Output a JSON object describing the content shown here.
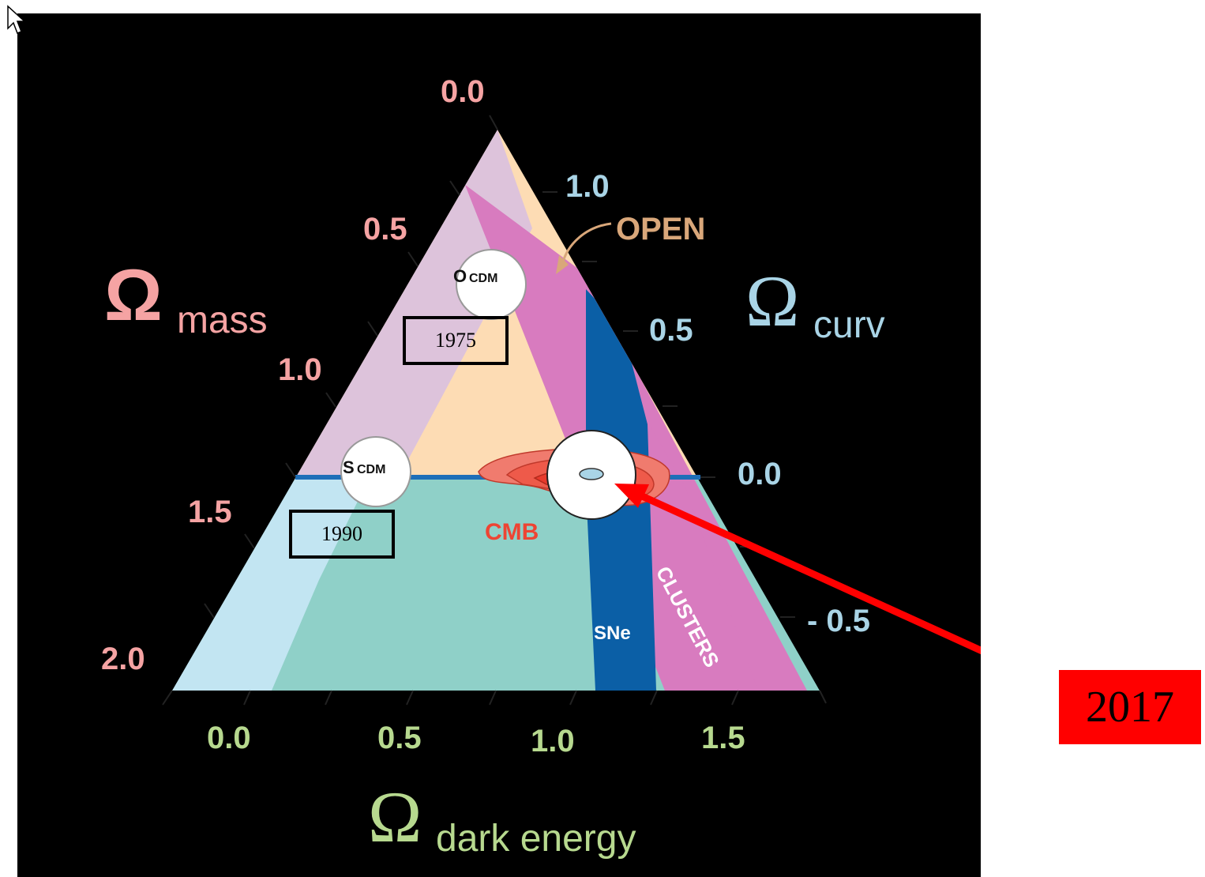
{
  "axes": {
    "mass": {
      "symbol": "Ω",
      "subscript": "mass",
      "ticks": [
        "0.0",
        "0.5",
        "1.0",
        "1.5",
        "2.0"
      ]
    },
    "curv": {
      "symbol": "Ω",
      "subscript": "curv",
      "ticks": [
        "1.0",
        "0.5",
        "0.0",
        "- 0.5"
      ]
    },
    "dark_energy": {
      "symbol": "Ω",
      "subscript": "dark energy",
      "ticks": [
        "0.0",
        "0.5",
        "1.0",
        "1.5"
      ]
    }
  },
  "regions": {
    "open": "OPEN",
    "cmb": "CMB",
    "sne": "SNe",
    "clusters": "CLUSTERS"
  },
  "models": {
    "ocdm": {
      "big": "O",
      "small": "CDM"
    },
    "scdm": {
      "big": "S",
      "small": "CDM"
    }
  },
  "years": {
    "y1975": "1975",
    "y1990": "1990",
    "y2017": "2017"
  },
  "colors": {
    "mass_label": "#f5a3a3",
    "curv_label": "#a9d4e6",
    "dark_energy_label": "#b7d98f",
    "open_label": "#d9a77a",
    "cmb": "#ee4433",
    "sne": "#0b5fa6",
    "clusters": "#d86fbe",
    "arrow": "#ff0000"
  }
}
